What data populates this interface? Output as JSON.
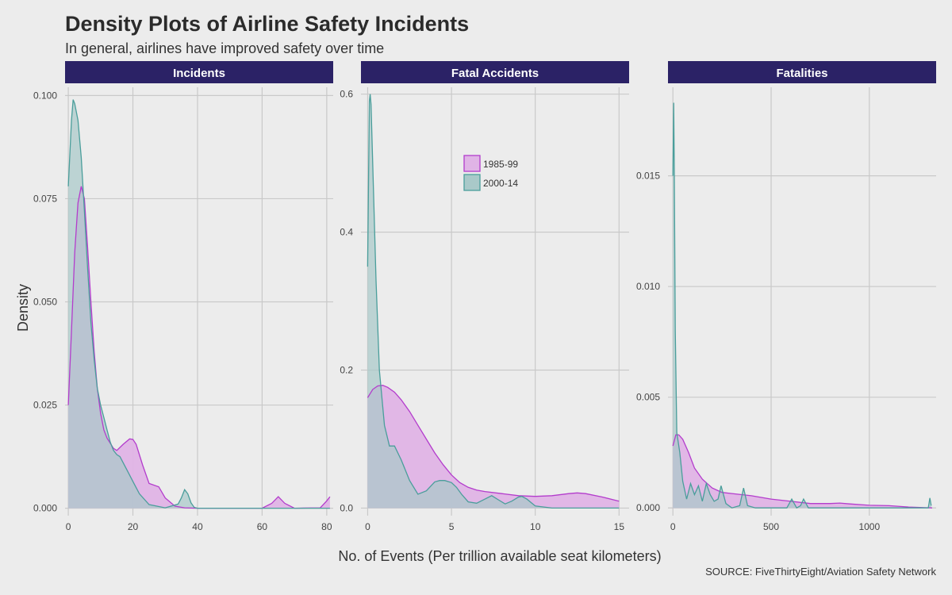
{
  "title": "Density Plots of Airline Safety Incidents",
  "subtitle": "In general, airlines have improved safety over time",
  "caption": "SOURCE: FiveThirtyEight/Aviation Safety Network",
  "colors": {
    "background": "#ececec",
    "strip": "#2b2266",
    "strip_text": "#ffffff",
    "grid": "#c9c9c9",
    "series_1985": "#b33ccc",
    "series_1985_fill": "#e0b4e6",
    "series_2000": "#4a9e9b",
    "series_2000_fill": "#a9c9c9",
    "overlap_fill": "#a9a7c9"
  },
  "chart_data": {
    "type": "area",
    "xlabel": "No. of Events (Per trillion available seat kilometers)",
    "ylabel": "Density",
    "legend": {
      "position": "inside top-right of middle panel",
      "entries": [
        "1985-99",
        "2000-14"
      ]
    },
    "grid": true,
    "panels": [
      {
        "label": "Incidents",
        "xlim": [
          -1,
          82
        ],
        "ylim": [
          -0.0018,
          0.102
        ],
        "x_ticks": [
          0,
          20,
          40,
          60,
          80
        ],
        "x_tick_labels": [
          "0",
          "20",
          "40",
          "60",
          "80"
        ],
        "y_ticks": [
          0,
          0.025,
          0.05,
          0.075,
          0.1
        ],
        "y_tick_labels": [
          "0.000",
          "0.025",
          "0.050",
          "0.075",
          "0.100"
        ],
        "series": [
          {
            "name": "1985-99",
            "x": [
              0,
              1,
              2,
              3,
              4,
              5,
              6,
              7,
              8,
              9,
              10,
              11,
              12,
              14,
              15,
              17,
              19,
              20,
              21,
              23,
              25,
              28,
              30,
              33,
              36,
              40,
              50,
              60,
              63,
              65,
              67,
              70,
              78,
              80,
              81
            ],
            "y": [
              0.025,
              0.043,
              0.062,
              0.074,
              0.078,
              0.075,
              0.063,
              0.05,
              0.038,
              0.029,
              0.023,
              0.019,
              0.017,
              0.0145,
              0.014,
              0.0155,
              0.0168,
              0.0167,
              0.0155,
              0.0105,
              0.006,
              0.0052,
              0.0025,
              0.0005,
              0.0001,
              0,
              0,
              0,
              0.0012,
              0.0028,
              0.0012,
              0,
              0.0001,
              0.0018,
              0.0028
            ]
          },
          {
            "name": "2000-14",
            "x": [
              0,
              1,
              1.5,
              2,
              3,
              4,
              5,
              6,
              7,
              8,
              9,
              10,
              11,
              12,
              13,
              14,
              15,
              16,
              18,
              20,
              22,
              25,
              30,
              34,
              35,
              36,
              37,
              38,
              39,
              40,
              50,
              60,
              70,
              80,
              81
            ],
            "y": [
              0.078,
              0.094,
              0.099,
              0.098,
              0.094,
              0.085,
              0.072,
              0.058,
              0.045,
              0.036,
              0.029,
              0.025,
              0.022,
              0.019,
              0.016,
              0.014,
              0.013,
              0.0125,
              0.0095,
              0.0065,
              0.0035,
              0.0009,
              0.0001,
              0.001,
              0.0025,
              0.0045,
              0.0035,
              0.0013,
              0.0002,
              0,
              0,
              0,
              0,
              0,
              0
            ]
          }
        ]
      },
      {
        "label": "Fatal Accidents",
        "xlim": [
          -0.4,
          15.6
        ],
        "ylim": [
          -0.011,
          0.61
        ],
        "x_ticks": [
          0,
          5,
          10,
          15
        ],
        "x_tick_labels": [
          "0",
          "5",
          "10",
          "15"
        ],
        "y_ticks": [
          0,
          0.2,
          0.4,
          0.6
        ],
        "y_tick_labels": [
          "0.0",
          "0.2",
          "0.4",
          "0.6"
        ],
        "series": [
          {
            "name": "1985-99",
            "x": [
              0,
              0.3,
              0.6,
              0.9,
              1.2,
              1.6,
              2,
              2.5,
              3,
              3.5,
              4,
              4.5,
              5,
              5.5,
              6,
              6.5,
              7,
              8,
              9,
              10,
              11,
              12,
              12.5,
              13,
              14,
              15
            ],
            "y": [
              0.16,
              0.172,
              0.177,
              0.178,
              0.175,
              0.168,
              0.157,
              0.14,
              0.12,
              0.1,
              0.08,
              0.063,
              0.048,
              0.037,
              0.03,
              0.026,
              0.024,
              0.021,
              0.018,
              0.017,
              0.018,
              0.021,
              0.022,
              0.021,
              0.016,
              0.01
            ]
          },
          {
            "name": "2000-14",
            "x": [
              0,
              0.1,
              0.15,
              0.2,
              0.3,
              0.5,
              0.7,
              1,
              1.3,
              1.6,
              2,
              2.5,
              3,
              3.5,
              4,
              4.3,
              4.6,
              5,
              5.3,
              5.6,
              6,
              6.5,
              7,
              7.4,
              7.8,
              8.2,
              8.6,
              9,
              9.2,
              9.5,
              10,
              11,
              12,
              13,
              15
            ],
            "y": [
              0.35,
              0.59,
              0.6,
              0.585,
              0.5,
              0.33,
              0.2,
              0.12,
              0.09,
              0.09,
              0.07,
              0.04,
              0.02,
              0.025,
              0.038,
              0.04,
              0.04,
              0.037,
              0.03,
              0.02,
              0.009,
              0.007,
              0.013,
              0.018,
              0.012,
              0.006,
              0.01,
              0.016,
              0.017,
              0.013,
              0.003,
              0,
              0,
              0,
              0
            ]
          }
        ]
      },
      {
        "label": "Fatalities",
        "xlim": [
          -25,
          1340
        ],
        "ylim": [
          -0.00035,
          0.019
        ],
        "x_ticks": [
          0,
          500,
          1000
        ],
        "x_tick_labels": [
          "0",
          "500",
          "1000"
        ],
        "y_ticks": [
          0,
          0.005,
          0.01,
          0.015
        ],
        "y_tick_labels": [
          "0.000",
          "0.005",
          "0.010",
          "0.015"
        ],
        "series": [
          {
            "name": "1985-99",
            "x": [
              0,
              15,
              30,
              50,
              80,
              110,
              150,
              200,
              250,
              300,
              400,
              500,
              600,
              700,
              800,
              850,
              900,
              1000,
              1100,
              1200,
              1300,
              1320
            ],
            "y": [
              0.0028,
              0.0033,
              0.0033,
              0.0031,
              0.0025,
              0.0018,
              0.0013,
              0.0009,
              0.0007,
              0.00065,
              0.00055,
              0.0004,
              0.0003,
              0.0002,
              0.0002,
              0.00022,
              0.00018,
              0.00012,
              0.0001,
              4e-05,
              1e-05,
              0
            ]
          },
          {
            "name": "2000-14",
            "x": [
              0,
              4,
              7,
              12,
              20,
              35,
              50,
              70,
              90,
              110,
              130,
              150,
              170,
              190,
              210,
              230,
              245,
              270,
              300,
              340,
              360,
              380,
              420,
              500,
              580,
              605,
              630,
              650,
              665,
              690,
              800,
              1000,
              1200,
              1300,
              1308,
              1315
            ],
            "y": [
              0.015,
              0.0183,
              0.0155,
              0.008,
              0.0034,
              0.0025,
              0.0012,
              0.0004,
              0.0011,
              0.0006,
              0.001,
              0.0003,
              0.0011,
              0.0006,
              0.0003,
              0.0004,
              0.001,
              0.0002,
              0,
              0.0001,
              0.0009,
              0.0001,
              0,
              0,
              0,
              0.0004,
              0,
              0.0001,
              0.0004,
              0,
              0,
              0,
              0,
              0,
              0.00045,
              0.0001
            ]
          }
        ]
      }
    ]
  }
}
